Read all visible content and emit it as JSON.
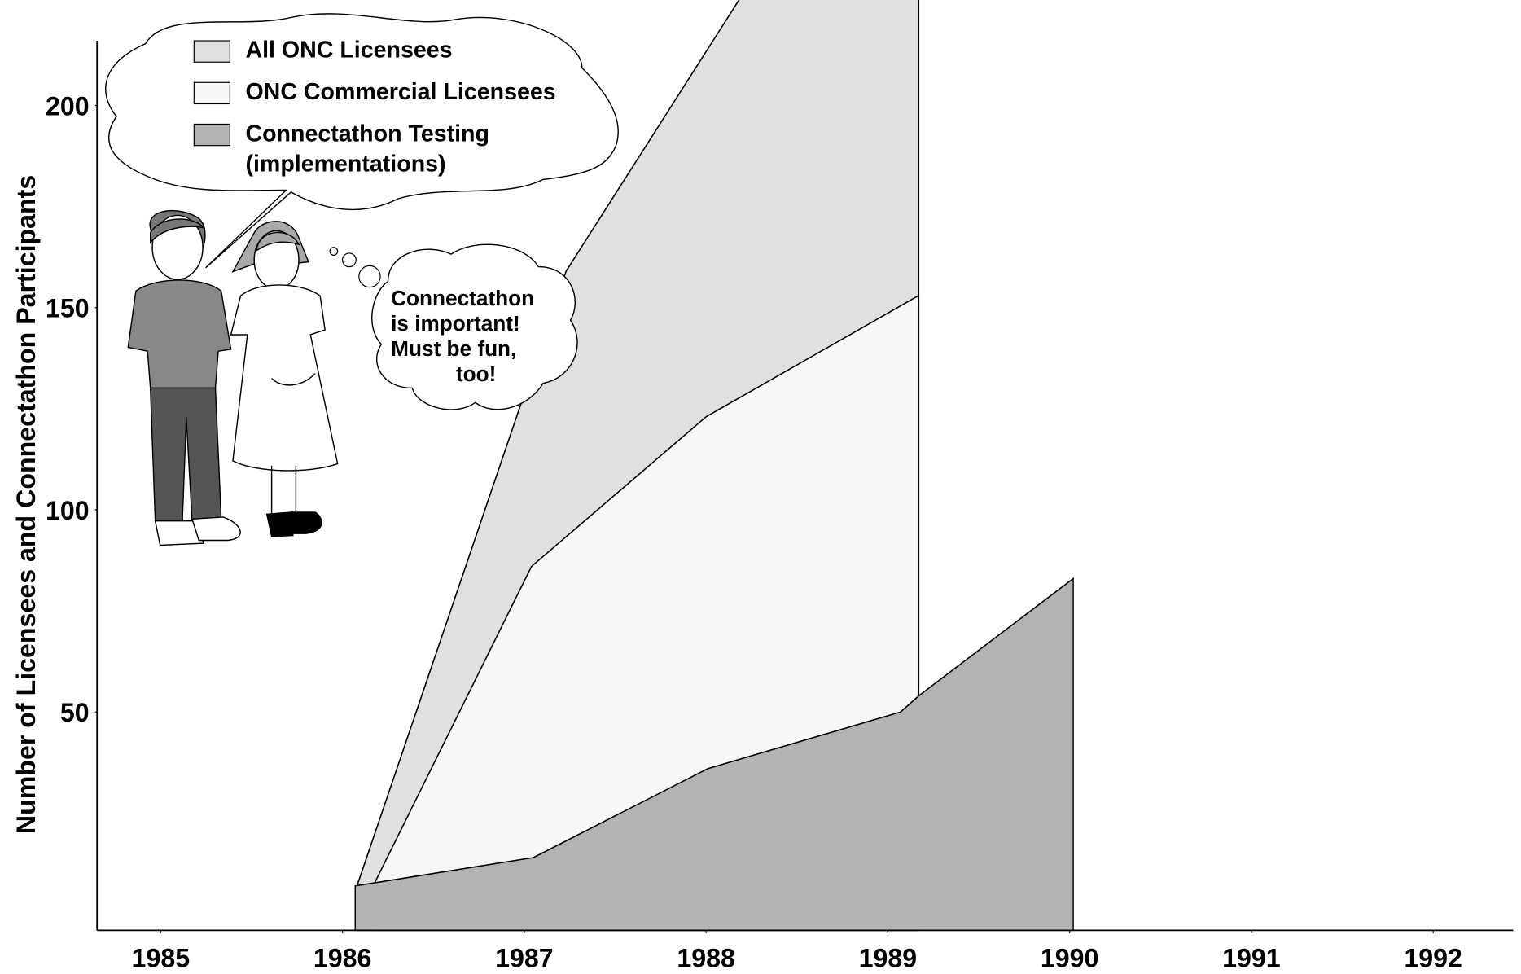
{
  "chart_data": {
    "type": "area",
    "y_label": "Number of Licensees and Connectathon Participants",
    "xlim": [
      1984.65,
      1992.44
    ],
    "xticks": [
      1985,
      1986,
      1987,
      1988,
      1989,
      1990,
      1991,
      1992
    ],
    "ylim": [
      -4,
      216
    ],
    "yticks": [
      50,
      100,
      150,
      200
    ],
    "series": [
      {
        "name": "All ONC Licensees",
        "color": "#e0e0e0",
        "x": [
          1986.08,
          1987.23,
          1988.18,
          1989.17
        ],
        "values": [
          7,
          159,
          226,
          280
        ]
      },
      {
        "name": "ONC Commercial Licensees",
        "color": "#f7f7f7",
        "x": [
          1986.18,
          1987.04,
          1988.0,
          1989.17
        ],
        "values": [
          8,
          86,
          123,
          153
        ]
      },
      {
        "name": "Connectathon Testing (implementations)",
        "color": "#b3b3b3",
        "x": [
          1986.07,
          1987.05,
          1988.01,
          1989.07,
          1989.17,
          1990.02
        ],
        "values": [
          7,
          14,
          36,
          50,
          54,
          83
        ]
      }
    ],
    "annotation": [
      "Connectathon",
      "is important!",
      "Must be fun,",
      "too!"
    ]
  }
}
